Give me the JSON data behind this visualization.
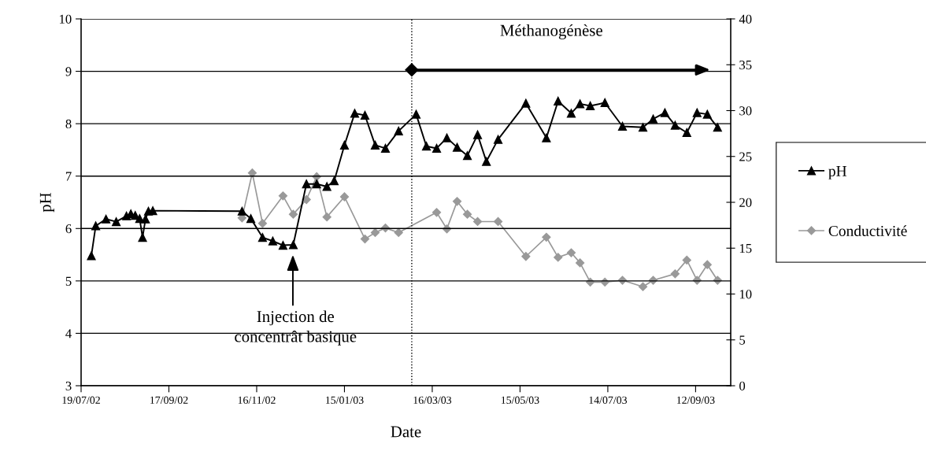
{
  "chart_data": {
    "type": "line",
    "xlabel": "Date",
    "ylabel": "pH",
    "grid": "y",
    "legend": "right",
    "xlim": [
      "2002-07-19",
      "2003-10-06"
    ],
    "xticks": [
      {
        "value": "2002-07-19",
        "label": "19/07/02"
      },
      {
        "value": "2002-09-17",
        "label": "17/09/02"
      },
      {
        "value": "2002-11-16",
        "label": "16/11/02"
      },
      {
        "value": "2003-01-15",
        "label": "15/01/03"
      },
      {
        "value": "2003-03-16",
        "label": "16/03/03"
      },
      {
        "value": "2003-05-15",
        "label": "15/05/03"
      },
      {
        "value": "2003-07-14",
        "label": "14/07/03"
      },
      {
        "value": "2003-09-12",
        "label": "12/09/03"
      }
    ],
    "ylim": [
      3,
      10
    ],
    "yticks": [
      3,
      4,
      5,
      6,
      7,
      8,
      9,
      10
    ],
    "y2lim": [
      0,
      40
    ],
    "y2ticks": [
      0,
      5,
      10,
      15,
      20,
      25,
      30,
      35,
      40
    ],
    "series": [
      {
        "name": "pH",
        "color": "#000000",
        "marker": "triangle",
        "x": [
          "2002-07-26",
          "2002-07-29",
          "2002-08-05",
          "2002-08-12",
          "2002-08-19",
          "2002-08-22",
          "2002-08-25",
          "2002-08-28",
          "2002-08-30",
          "2002-09-01",
          "2002-09-03",
          "2002-09-06",
          "2002-11-06",
          "2002-11-12",
          "2002-11-20",
          "2002-11-27",
          "2002-12-04",
          "2002-12-11",
          "2002-12-20",
          "2002-12-27",
          "2003-01-03",
          "2003-01-08",
          "2003-01-15",
          "2003-01-22",
          "2003-01-29",
          "2003-02-05",
          "2003-02-12",
          "2003-02-21",
          "2003-03-05",
          "2003-03-12",
          "2003-03-19",
          "2003-03-26",
          "2003-04-02",
          "2003-04-09",
          "2003-04-16",
          "2003-04-22",
          "2003-04-30",
          "2003-05-19",
          "2003-06-02",
          "2003-06-10",
          "2003-06-19",
          "2003-06-25",
          "2003-07-02",
          "2003-07-12",
          "2003-07-24",
          "2003-08-07",
          "2003-08-14",
          "2003-08-22",
          "2003-08-29",
          "2003-09-06",
          "2003-09-13",
          "2003-09-20",
          "2003-09-27"
        ],
        "values": [
          5.48,
          6.05,
          6.18,
          6.13,
          6.24,
          6.28,
          6.25,
          6.19,
          5.83,
          6.18,
          6.33,
          6.34,
          6.33,
          6.19,
          5.83,
          5.76,
          5.68,
          5.69,
          6.85,
          6.85,
          6.8,
          6.91,
          7.59,
          8.2,
          8.16,
          7.59,
          7.53,
          7.86,
          8.18,
          7.57,
          7.53,
          7.73,
          7.55,
          7.39,
          7.79,
          7.28,
          7.7,
          8.39,
          7.73,
          8.43,
          8.2,
          8.38,
          8.34,
          8.4,
          7.95,
          7.93,
          8.09,
          8.21,
          7.97,
          7.83,
          8.21,
          8.18,
          7.93
        ]
      },
      {
        "name": "Conductivité",
        "color": "#999999",
        "marker": "diamond",
        "axis": "y2",
        "x": [
          "2002-11-06",
          "2002-11-13",
          "2002-11-20",
          "2002-12-04",
          "2002-12-11",
          "2002-12-20",
          "2002-12-27",
          "2003-01-03",
          "2003-01-15",
          "2003-01-29",
          "2003-02-05",
          "2003-02-12",
          "2003-02-21",
          "2003-03-19",
          "2003-03-26",
          "2003-04-02",
          "2003-04-09",
          "2003-04-16",
          "2003-04-30",
          "2003-05-19",
          "2003-06-02",
          "2003-06-10",
          "2003-06-19",
          "2003-06-25",
          "2003-07-02",
          "2003-07-12",
          "2003-07-24",
          "2003-08-07",
          "2003-08-14",
          "2003-08-29",
          "2003-09-06",
          "2003-09-13",
          "2003-09-20",
          "2003-09-27"
        ],
        "values": [
          18.3,
          23.2,
          17.7,
          20.7,
          18.7,
          20.3,
          22.8,
          18.4,
          20.6,
          16.0,
          16.7,
          17.2,
          16.7,
          18.9,
          17.1,
          20.1,
          18.7,
          17.9,
          17.9,
          14.1,
          16.2,
          14.0,
          14.5,
          13.4,
          11.3,
          11.3,
          11.5,
          10.8,
          11.5,
          12.2,
          13.7,
          11.5,
          13.2,
          11.5
        ]
      }
    ],
    "ref_lines": [
      {
        "axis": "x",
        "value": "2003-03-02",
        "color": "#000000",
        "line_style": "dotted"
      }
    ],
    "annotations": [
      "Méthanogénèse",
      "Injection de\nconcentrât basique"
    ]
  }
}
